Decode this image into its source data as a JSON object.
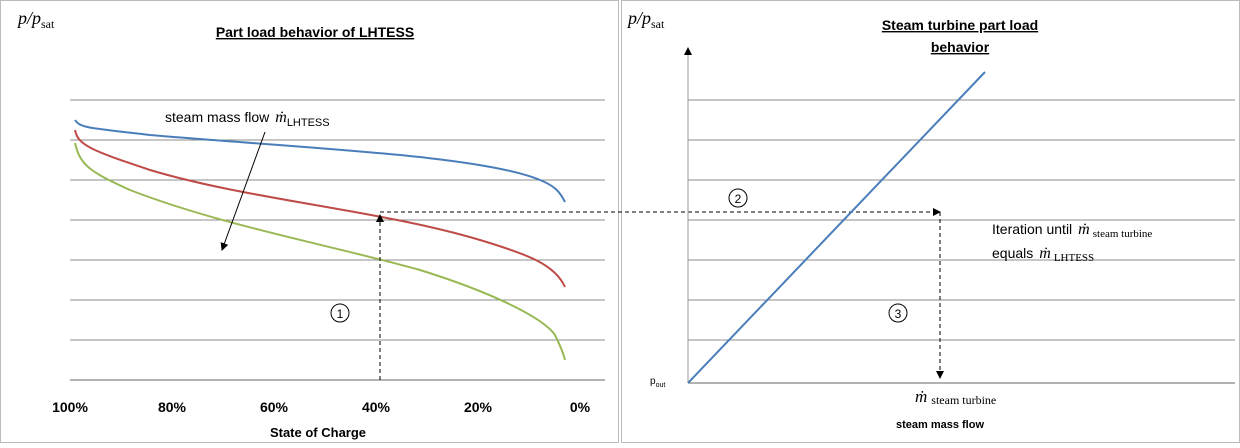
{
  "left": {
    "title": "Part load behavior of LHTESS",
    "y_label": {
      "num": "p",
      "den": "p",
      "den_sub": "sat"
    },
    "x_ticks": [
      "100%",
      "80%",
      "60%",
      "40%",
      "20%",
      "0%"
    ],
    "x_label": "State of Charge",
    "annotation": {
      "text": "steam mass flow",
      "symbol": "ṁ",
      "sub": "LHTESS"
    },
    "step": "1"
  },
  "right": {
    "title_line1": "Steam turbine part load",
    "title_line2": "behavior",
    "y_label": {
      "num": "p",
      "den": "p",
      "den_sub": "sat"
    },
    "p_out": {
      "text": "p",
      "sub": "out"
    },
    "x_marker": {
      "symbol": "ṁ",
      "sub": "steam turbine"
    },
    "x_label": "steam mass flow",
    "iteration": {
      "line1": "Iteration until",
      "sym1": "ṁ",
      "sub1": "steam turbine",
      "line2": "equals",
      "sym2": "ṁ",
      "sub2": "LHTESS"
    },
    "step2": "2",
    "step3": "3"
  }
}
